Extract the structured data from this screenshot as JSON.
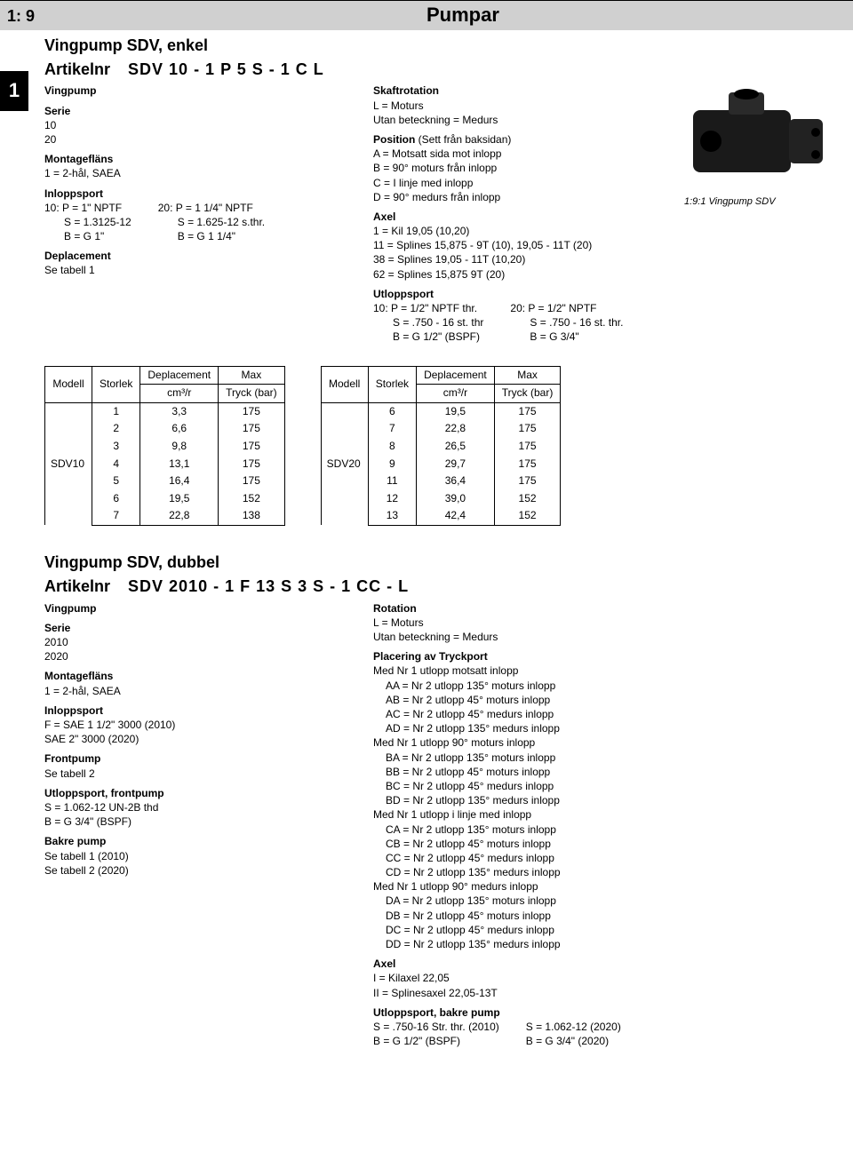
{
  "header": {
    "section": "1: 9",
    "title": "Pumpar",
    "side_tab": "1"
  },
  "enkel": {
    "title": "Vingpump SDV, enkel",
    "artikelnr_label": "Artikelnr",
    "artikelnr_code": "SDV 10 - 1 P 5 S - 1 C L",
    "left": {
      "vingpump": {
        "label": "Vingpump"
      },
      "serie": {
        "label": "Serie",
        "v1": "10",
        "v2": "20"
      },
      "montageflans": {
        "label": "Montagefläns",
        "v1": "1 = 2-hål, SAEA"
      },
      "inloppsport": {
        "label": "Inloppsport",
        "col1_l1": "10: P = 1\" NPTF",
        "col1_l2": "S = 1.3125-12",
        "col1_l3": "B = G 1\"",
        "col2_l1": "20: P = 1 1/4\" NPTF",
        "col2_l2": "S = 1.625-12 s.thr.",
        "col2_l3": "B = G 1 1/4\""
      },
      "deplacement": {
        "label": "Deplacement",
        "v1": "Se tabell 1"
      }
    },
    "right": {
      "skaftrotation": {
        "label": "Skaftrotation",
        "v1": "L = Moturs",
        "v2": "Utan beteckning = Medurs"
      },
      "position": {
        "label": "Position",
        "note": " (Sett från baksidan)",
        "v1": "A = Motsatt sida mot inlopp",
        "v2": "B = 90° moturs från inlopp",
        "v3": "C = I linje med inlopp",
        "v4": "D = 90° medurs från inlopp"
      },
      "axel": {
        "label": "Axel",
        "v1": "1   = Kil 19,05 (10,20)",
        "v2": "11 = Splines 15,875 - 9T (10), 19,05 - 11T (20)",
        "v3": "38 = Splines 19,05 - 11T (10,20)",
        "v4": "62 = Splines 15,875 9T (20)"
      },
      "utloppsport": {
        "label": "Utloppsport",
        "col1_l1": "10: P = 1/2\" NPTF thr.",
        "col1_l2": "S = .750 - 16 st. thr",
        "col1_l3": "B = G 1/2\" (BSPF)",
        "col2_l1": "20: P = 1/2\" NPTF",
        "col2_l2": "S = .750 - 16 st. thr.",
        "col2_l3": "B = G 3/4\""
      }
    },
    "image_caption": "1:9:1 Vingpump SDV"
  },
  "table_headers": {
    "modell": "Modell",
    "storlek": "Storlek",
    "deplacement": "Deplacement",
    "deplacement_unit": "cm³/r",
    "max": "Max",
    "tryck": "Tryck (bar)"
  },
  "table1": {
    "model": "SDV10",
    "rows": [
      {
        "s": "1",
        "d": "3,3",
        "p": "175"
      },
      {
        "s": "2",
        "d": "6,6",
        "p": "175"
      },
      {
        "s": "3",
        "d": "9,8",
        "p": "175"
      },
      {
        "s": "4",
        "d": "13,1",
        "p": "175"
      },
      {
        "s": "5",
        "d": "16,4",
        "p": "175"
      },
      {
        "s": "6",
        "d": "19,5",
        "p": "152"
      },
      {
        "s": "7",
        "d": "22,8",
        "p": "138"
      }
    ]
  },
  "table2": {
    "model": "SDV20",
    "rows": [
      {
        "s": "6",
        "d": "19,5",
        "p": "175"
      },
      {
        "s": "7",
        "d": "22,8",
        "p": "175"
      },
      {
        "s": "8",
        "d": "26,5",
        "p": "175"
      },
      {
        "s": "9",
        "d": "29,7",
        "p": "175"
      },
      {
        "s": "11",
        "d": "36,4",
        "p": "175"
      },
      {
        "s": "12",
        "d": "39,0",
        "p": "152"
      },
      {
        "s": "13",
        "d": "42,4",
        "p": "152"
      }
    ]
  },
  "dubbel": {
    "title": "Vingpump SDV, dubbel",
    "artikelnr_label": "Artikelnr",
    "artikelnr_code": "SDV 2010 - 1 F 13 S 3 S - 1 CC - L",
    "left": {
      "vingpump": {
        "label": "Vingpump"
      },
      "serie": {
        "label": "Serie",
        "v1": "2010",
        "v2": "2020"
      },
      "montageflans": {
        "label": "Montagefläns",
        "v1": "1 = 2-hål, SAEA"
      },
      "inloppsport": {
        "label": "Inloppsport",
        "v1": "F = SAE 1 1/2\" 3000 (2010)",
        "v2": "SAE 2\" 3000 (2020)"
      },
      "frontpump": {
        "label": "Frontpump",
        "v1": "Se tabell 2"
      },
      "utloppsport_front": {
        "label": "Utloppsport, frontpump",
        "v1": "S = 1.062-12 UN-2B thd",
        "v2": "B = G 3/4\" (BSPF)"
      },
      "bakre": {
        "label": "Bakre pump",
        "v1": "Se tabell 1 (2010)",
        "v2": "Se tabell 2 (2020)"
      }
    },
    "right": {
      "rotation": {
        "label": "Rotation",
        "v1": "L = Moturs",
        "v2": "Utan beteckning = Medurs"
      },
      "placering": {
        "label": "Placering av Tryckport",
        "g1": "Med Nr 1 utlopp motsatt inlopp",
        "g1_1": "AA = Nr 2 utlopp 135° moturs inlopp",
        "g1_2": "AB = Nr 2 utlopp 45° moturs inlopp",
        "g1_3": "AC = Nr 2 utlopp 45° medurs inlopp",
        "g1_4": "AD = Nr 2 utlopp 135° medurs inlopp",
        "g2": "Med Nr 1 utlopp 90° moturs inlopp",
        "g2_1": "BA = Nr 2 utlopp 135° moturs inlopp",
        "g2_2": "BB = Nr 2 utlopp 45° moturs inlopp",
        "g2_3": "BC = Nr 2 utlopp 45° medurs inlopp",
        "g2_4": "BD = Nr 2 utlopp 135° medurs inlopp",
        "g3": "Med Nr 1 utlopp i linje med inlopp",
        "g3_1": "CA = Nr 2 utlopp 135° moturs inlopp",
        "g3_2": "CB = Nr 2 utlopp 45° moturs inlopp",
        "g3_3": "CC = Nr 2 utlopp 45° medurs inlopp",
        "g3_4": "CD = Nr 2 utlopp 135° medurs inlopp",
        "g4": "Med Nr 1 utlopp 90° medurs inlopp",
        "g4_1": "DA = Nr 2 utlopp 135° moturs inlopp",
        "g4_2": "DB = Nr 2 utlopp 45° moturs inlopp",
        "g4_3": "DC = Nr 2 utlopp 45° medurs inlopp",
        "g4_4": "DD = Nr 2 utlopp 135° medurs inlopp"
      },
      "axel": {
        "label": "Axel",
        "v1": "I = Kilaxel 22,05",
        "v2": "II = Splinesaxel 22,05-13T"
      },
      "utloppsport_bakre": {
        "label": "Utloppsport, bakre pump",
        "col1_l1": "S = .750-16 Str. thr. (2010)",
        "col1_l2": "B = G 1/2\" (BSPF)",
        "col2_l1": "S = 1.062-12 (2020)",
        "col2_l2": "B = G 3/4\" (2020)"
      }
    }
  }
}
